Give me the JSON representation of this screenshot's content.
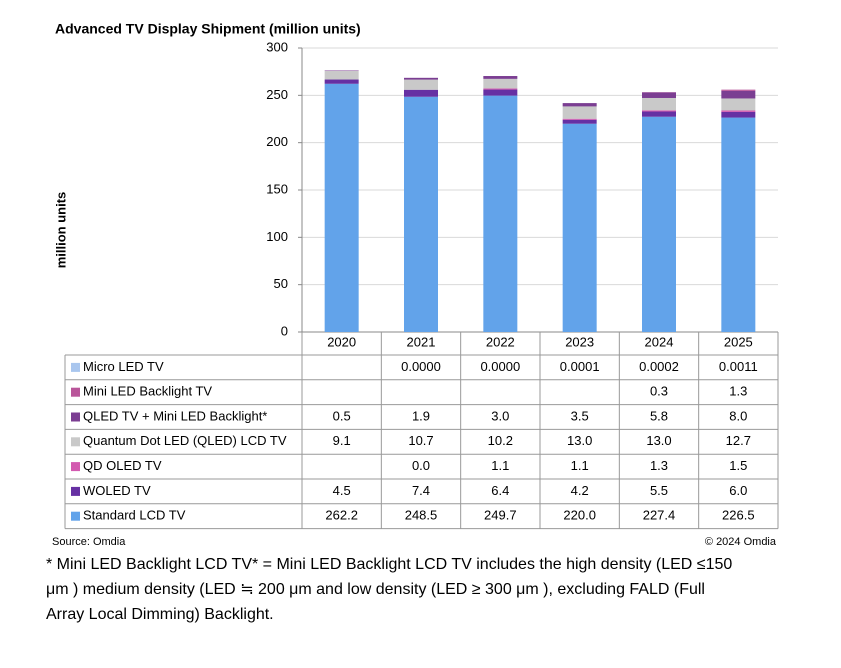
{
  "chart_data": {
    "type": "stacked-bar-table",
    "title": "Advanced TV Display Shipment (million units)",
    "y_label": "million units",
    "source": "Source: Omdia",
    "copyright": "© 2024 Omdia",
    "footnote": "* Mini LED Backlight LCD TV* = Mini LED Backlight LCD TV includes the high density (LED ≤150 μm ) medium density (LED ≒ 200 μm and low density (LED ≥ 300 μm ), excluding FALD (Full Array Local Dimming) Backlight.",
    "categories": [
      "2020",
      "2021",
      "2022",
      "2023",
      "2024",
      "2025"
    ],
    "ylim": [
      0,
      300
    ],
    "yticks": [
      0,
      50,
      100,
      150,
      200,
      250,
      300
    ],
    "grid": true,
    "series": [
      {
        "name": "Standard LCD TV",
        "color": "#62a3ea",
        "values": [
          262.2,
          248.5,
          249.7,
          220.0,
          227.4,
          226.5
        ],
        "value_labels": [
          "262.2",
          "248.5",
          "249.7",
          "220.0",
          "227.4",
          "226.5"
        ]
      },
      {
        "name": "WOLED TV",
        "color": "#6630a3",
        "values": [
          4.5,
          7.4,
          6.4,
          4.2,
          5.5,
          6.0
        ],
        "value_labels": [
          "4.5",
          "7.4",
          "6.4",
          "4.2",
          "5.5",
          "6.0"
        ]
      },
      {
        "name": "QD OLED TV",
        "color": "#d35ab0",
        "values": [
          null,
          0.0,
          1.1,
          1.1,
          1.3,
          1.5
        ],
        "value_labels": [
          null,
          "0.0",
          "1.1",
          "1.1",
          "1.3",
          "1.5"
        ]
      },
      {
        "name": "Quantum Dot LED (QLED) LCD TV",
        "color": "#c9c9c9",
        "values": [
          9.1,
          10.7,
          10.2,
          13.0,
          13.0,
          12.7
        ],
        "value_labels": [
          "9.1",
          "10.7",
          "10.2",
          "13.0",
          "13.0",
          "12.7"
        ]
      },
      {
        "name": "QLED TV + Mini LED Backlight*",
        "color": "#7b3e92",
        "values": [
          0.5,
          1.9,
          3.0,
          3.5,
          5.8,
          8.0
        ],
        "value_labels": [
          "0.5",
          "1.9",
          "3.0",
          "3.5",
          "5.8",
          "8.0"
        ]
      },
      {
        "name": "Mini LED Backlight TV",
        "color": "#b9559a",
        "values": [
          null,
          null,
          null,
          null,
          0.3,
          1.3
        ],
        "value_labels": [
          null,
          null,
          null,
          null,
          "0.3",
          "1.3"
        ]
      },
      {
        "name": "Micro LED TV",
        "color": "#a9c6ee",
        "values": [
          null,
          0.0,
          0.0,
          0.0001,
          0.0002,
          0.0011
        ],
        "value_labels": [
          null,
          "0.0000",
          "0.0000",
          "0.0001",
          "0.0002",
          "0.0011"
        ]
      }
    ]
  }
}
